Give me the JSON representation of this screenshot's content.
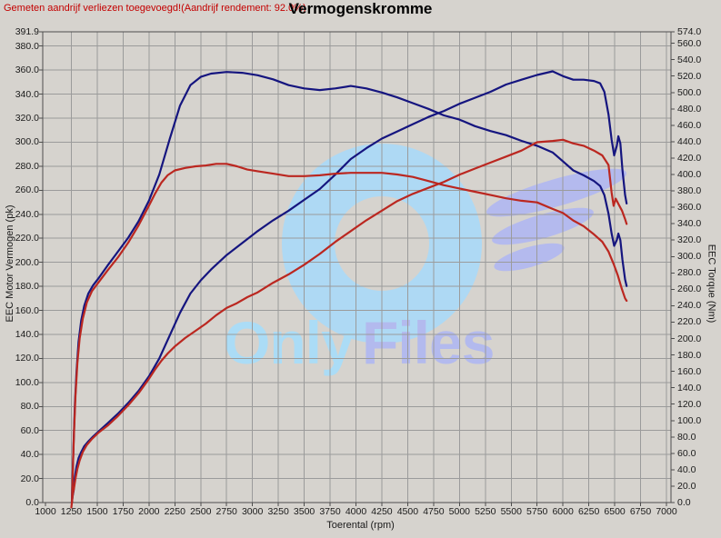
{
  "header": {
    "note": "Gemeten aandrijf verliezen toegevoegd!(Aandrijf rendement: 92.0%)",
    "title": "Vermogenskromme"
  },
  "watermark": {
    "text_blue": "Only",
    "text_purple": "Files",
    "ring_color": "#aed9f4",
    "wing_color": "#b4baee",
    "text_blue_color": "#abdcf6",
    "text_purple_color": "#b3baee"
  },
  "axes": {
    "y_left": {
      "title": "EEC Motor Vermogen (pk)",
      "ticks": [
        "391.9",
        "380.0",
        "360.0",
        "340.0",
        "320.0",
        "300.0",
        "280.0",
        "260.0",
        "240.0",
        "220.0",
        "200.0",
        "180.0",
        "160.0",
        "140.0",
        "120.0",
        "100.0",
        "80.0",
        "60.0",
        "40.0",
        "20.0",
        "0.0"
      ]
    },
    "y_right": {
      "title": "EEC Torque (Nm)",
      "ticks": [
        "574.0",
        "560.0",
        "540.0",
        "520.0",
        "500.0",
        "480.0",
        "460.0",
        "440.0",
        "420.0",
        "400.0",
        "380.0",
        "360.0",
        "340.0",
        "320.0",
        "300.0",
        "280.0",
        "260.0",
        "240.0",
        "220.0",
        "200.0",
        "180.0",
        "160.0",
        "140.0",
        "120.0",
        "100.0",
        "80.0",
        "60.0",
        "40.0",
        "20.0",
        "0.0"
      ]
    },
    "x": {
      "title": "Toerental (rpm)",
      "ticks": [
        "1000",
        "1250",
        "1500",
        "1750",
        "2000",
        "2250",
        "2500",
        "2750",
        "3000",
        "3250",
        "3500",
        "3750",
        "4000",
        "4250",
        "4500",
        "4750",
        "5000",
        "5250",
        "5500",
        "5750",
        "6000",
        "6250",
        "6500",
        "6750",
        "7000"
      ]
    }
  },
  "chart_data": {
    "type": "line",
    "title": "Vermogenskromme",
    "x_axis": {
      "label": "Toerental (rpm)",
      "min": 1000,
      "max": 7000,
      "tick_step": 250
    },
    "y_left_axis": {
      "label": "EEC Motor Vermogen (pk)",
      "min": 0,
      "max": 391.9,
      "tick_step": 20
    },
    "y_right_axis": {
      "label": "EEC Torque (Nm)",
      "min": 0,
      "max": 574.0,
      "tick_step": 20
    },
    "grid": true,
    "legend": false,
    "series": [
      {
        "name": "torque_blue_run",
        "unit": "Nm",
        "axis": "right",
        "color": "#15157f",
        "points": [
          [
            1255,
            0
          ],
          [
            1262,
            30
          ],
          [
            1272,
            75
          ],
          [
            1285,
            120
          ],
          [
            1300,
            160
          ],
          [
            1320,
            196
          ],
          [
            1345,
            222
          ],
          [
            1375,
            240
          ],
          [
            1415,
            255
          ],
          [
            1460,
            265
          ],
          [
            1510,
            273
          ],
          [
            1600,
            289
          ],
          [
            1700,
            306
          ],
          [
            1800,
            323
          ],
          [
            1900,
            343
          ],
          [
            2000,
            368
          ],
          [
            2100,
            400
          ],
          [
            2200,
            443
          ],
          [
            2300,
            484
          ],
          [
            2400,
            509
          ],
          [
            2500,
            519
          ],
          [
            2600,
            523
          ],
          [
            2750,
            525
          ],
          [
            2900,
            524
          ],
          [
            3050,
            521
          ],
          [
            3200,
            516
          ],
          [
            3350,
            509
          ],
          [
            3500,
            505
          ],
          [
            3650,
            503
          ],
          [
            3800,
            505
          ],
          [
            3950,
            508
          ],
          [
            4100,
            505
          ],
          [
            4250,
            500
          ],
          [
            4400,
            494
          ],
          [
            4550,
            487
          ],
          [
            4700,
            480
          ],
          [
            4850,
            472
          ],
          [
            5000,
            467
          ],
          [
            5150,
            459
          ],
          [
            5300,
            453
          ],
          [
            5450,
            448
          ],
          [
            5600,
            441
          ],
          [
            5750,
            435
          ],
          [
            5900,
            427
          ],
          [
            6000,
            416
          ],
          [
            6100,
            405
          ],
          [
            6200,
            399
          ],
          [
            6300,
            392
          ],
          [
            6360,
            386
          ],
          [
            6400,
            375
          ],
          [
            6440,
            352
          ],
          [
            6470,
            328
          ],
          [
            6495,
            313
          ],
          [
            6520,
            320
          ],
          [
            6535,
            328
          ],
          [
            6555,
            320
          ],
          [
            6575,
            296
          ],
          [
            6600,
            272
          ],
          [
            6615,
            264
          ]
        ]
      },
      {
        "name": "power_blue_run",
        "unit": "pk",
        "axis": "left",
        "color": "#15157f",
        "points": [
          [
            1255,
            0
          ],
          [
            1262,
            5
          ],
          [
            1272,
            10
          ],
          [
            1285,
            22
          ],
          [
            1300,
            30
          ],
          [
            1320,
            37
          ],
          [
            1345,
            42
          ],
          [
            1375,
            47
          ],
          [
            1415,
            51
          ],
          [
            1460,
            55
          ],
          [
            1510,
            59
          ],
          [
            1600,
            66
          ],
          [
            1700,
            74
          ],
          [
            1800,
            83
          ],
          [
            1900,
            93
          ],
          [
            2000,
            105
          ],
          [
            2100,
            120
          ],
          [
            2200,
            139
          ],
          [
            2300,
            158
          ],
          [
            2400,
            174
          ],
          [
            2500,
            185
          ],
          [
            2600,
            194
          ],
          [
            2750,
            206
          ],
          [
            2900,
            216
          ],
          [
            3050,
            226
          ],
          [
            3200,
            235
          ],
          [
            3350,
            243
          ],
          [
            3500,
            252
          ],
          [
            3650,
            261
          ],
          [
            3800,
            273
          ],
          [
            3950,
            286
          ],
          [
            4100,
            295
          ],
          [
            4250,
            303
          ],
          [
            4400,
            309
          ],
          [
            4550,
            315
          ],
          [
            4700,
            321
          ],
          [
            4850,
            326
          ],
          [
            5000,
            332
          ],
          [
            5150,
            337
          ],
          [
            5300,
            342
          ],
          [
            5450,
            348
          ],
          [
            5600,
            352
          ],
          [
            5750,
            356
          ],
          [
            5900,
            359
          ],
          [
            6000,
            355
          ],
          [
            6100,
            352
          ],
          [
            6200,
            352
          ],
          [
            6300,
            351
          ],
          [
            6360,
            349
          ],
          [
            6400,
            342
          ],
          [
            6440,
            323
          ],
          [
            6470,
            302
          ],
          [
            6495,
            289
          ],
          [
            6520,
            297
          ],
          [
            6535,
            305
          ],
          [
            6555,
            299
          ],
          [
            6575,
            277
          ],
          [
            6600,
            256
          ],
          [
            6615,
            249
          ]
        ]
      },
      {
        "name": "torque_red_run",
        "unit": "Nm",
        "axis": "right",
        "color": "#bb2720",
        "points": [
          [
            1250,
            -6
          ],
          [
            1256,
            0
          ],
          [
            1264,
            40
          ],
          [
            1276,
            85
          ],
          [
            1290,
            130
          ],
          [
            1308,
            170
          ],
          [
            1330,
            200
          ],
          [
            1360,
            224
          ],
          [
            1400,
            244
          ],
          [
            1450,
            258
          ],
          [
            1510,
            268
          ],
          [
            1600,
            283
          ],
          [
            1700,
            299
          ],
          [
            1800,
            317
          ],
          [
            1900,
            338
          ],
          [
            1950,
            350
          ],
          [
            2000,
            362
          ],
          [
            2060,
            377
          ],
          [
            2120,
            390
          ],
          [
            2180,
            399
          ],
          [
            2250,
            405
          ],
          [
            2350,
            408
          ],
          [
            2450,
            410
          ],
          [
            2550,
            411
          ],
          [
            2650,
            413
          ],
          [
            2750,
            413
          ],
          [
            2850,
            410
          ],
          [
            2950,
            406
          ],
          [
            3050,
            404
          ],
          [
            3200,
            401
          ],
          [
            3350,
            398
          ],
          [
            3500,
            398
          ],
          [
            3650,
            399
          ],
          [
            3800,
            401
          ],
          [
            3950,
            402
          ],
          [
            4100,
            402
          ],
          [
            4250,
            402
          ],
          [
            4400,
            400
          ],
          [
            4550,
            397
          ],
          [
            4700,
            392
          ],
          [
            4850,
            387
          ],
          [
            5000,
            383
          ],
          [
            5150,
            379
          ],
          [
            5300,
            375
          ],
          [
            5450,
            371
          ],
          [
            5600,
            368
          ],
          [
            5750,
            366
          ],
          [
            5900,
            358
          ],
          [
            6000,
            353
          ],
          [
            6100,
            344
          ],
          [
            6200,
            337
          ],
          [
            6300,
            327
          ],
          [
            6380,
            318
          ],
          [
            6440,
            306
          ],
          [
            6490,
            291
          ],
          [
            6530,
            277
          ],
          [
            6570,
            260
          ],
          [
            6600,
            249
          ],
          [
            6615,
            246
          ]
        ]
      },
      {
        "name": "power_red_run",
        "unit": "pk",
        "axis": "left",
        "color": "#bb2720",
        "points": [
          [
            1256,
            0
          ],
          [
            1264,
            7
          ],
          [
            1276,
            12
          ],
          [
            1290,
            20
          ],
          [
            1308,
            28
          ],
          [
            1330,
            35
          ],
          [
            1360,
            42
          ],
          [
            1400,
            48
          ],
          [
            1450,
            53
          ],
          [
            1510,
            58
          ],
          [
            1600,
            64
          ],
          [
            1700,
            72
          ],
          [
            1800,
            81
          ],
          [
            1900,
            91
          ],
          [
            1950,
            97
          ],
          [
            2000,
            103
          ],
          [
            2060,
            111
          ],
          [
            2120,
            118
          ],
          [
            2180,
            124
          ],
          [
            2250,
            130
          ],
          [
            2350,
            137
          ],
          [
            2450,
            143
          ],
          [
            2550,
            149
          ],
          [
            2650,
            156
          ],
          [
            2750,
            162
          ],
          [
            2850,
            166
          ],
          [
            2950,
            171
          ],
          [
            3050,
            175
          ],
          [
            3200,
            183
          ],
          [
            3350,
            190
          ],
          [
            3500,
            198
          ],
          [
            3650,
            207
          ],
          [
            3800,
            217
          ],
          [
            3950,
            226
          ],
          [
            4100,
            235
          ],
          [
            4250,
            243
          ],
          [
            4400,
            251
          ],
          [
            4550,
            257
          ],
          [
            4700,
            262
          ],
          [
            4850,
            267
          ],
          [
            5000,
            273
          ],
          [
            5150,
            278
          ],
          [
            5300,
            283
          ],
          [
            5450,
            288
          ],
          [
            5600,
            293
          ],
          [
            5750,
            300
          ],
          [
            5900,
            301
          ],
          [
            6000,
            302
          ],
          [
            6100,
            299
          ],
          [
            6200,
            297
          ],
          [
            6300,
            293
          ],
          [
            6380,
            289
          ],
          [
            6440,
            281
          ],
          [
            6470,
            258
          ],
          [
            6490,
            247
          ],
          [
            6510,
            253
          ],
          [
            6540,
            248
          ],
          [
            6570,
            243
          ],
          [
            6600,
            236
          ],
          [
            6615,
            232
          ]
        ]
      }
    ]
  }
}
